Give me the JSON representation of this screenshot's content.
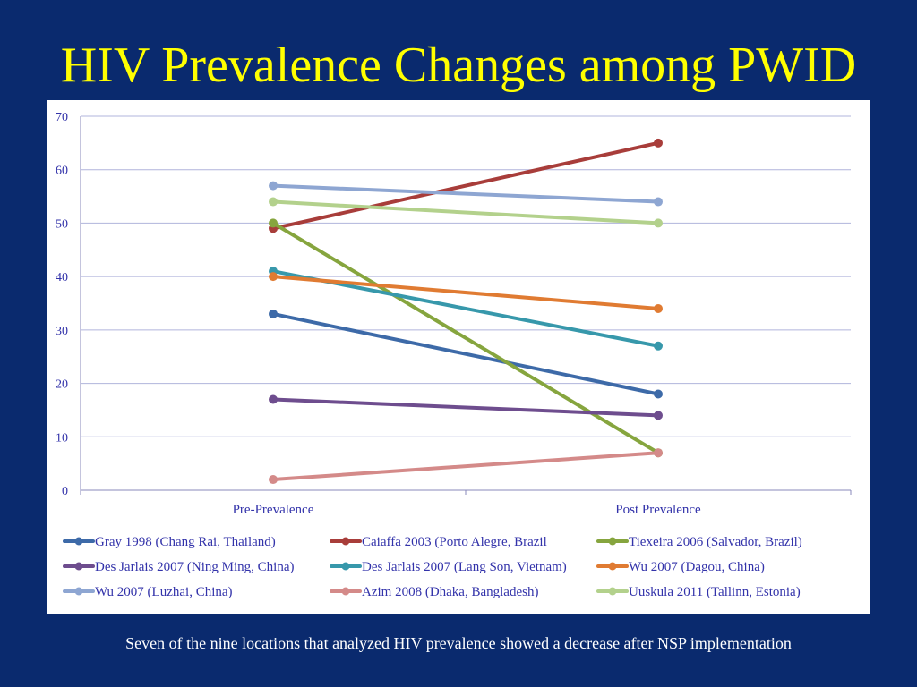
{
  "slide": {
    "title": "HIV Prevalence Changes among PWID",
    "caption": "Seven of the nine locations that analyzed HIV prevalence showed a decrease after NSP implementation"
  },
  "chart_data": {
    "type": "line",
    "categories": [
      "Pre-Prevalence",
      "Post Prevalence"
    ],
    "ylim": [
      0,
      70
    ],
    "yticks": [
      0,
      10,
      20,
      30,
      40,
      50,
      60,
      70
    ],
    "grid": true,
    "legend_position": "bottom",
    "series": [
      {
        "name": "Gray 1998 (Chang Rai, Thailand)",
        "color": "#3d6aa8",
        "values": [
          33,
          18
        ]
      },
      {
        "name": "Caiaffa 2003 (Porto Alegre, Brazil",
        "color": "#a83d3a",
        "values": [
          49,
          65
        ]
      },
      {
        "name": "Tiexeira 2006 (Salvador, Brazil)",
        "color": "#86a53e",
        "values": [
          50,
          7
        ]
      },
      {
        "name": "Des Jarlais 2007 (Ning Ming,  China)",
        "color": "#6e4d8e",
        "values": [
          17,
          14
        ]
      },
      {
        "name": "Des Jarlais 2007 (Lang Son, Vietnam)",
        "color": "#3798ab",
        "values": [
          41,
          27
        ]
      },
      {
        "name": "Wu 2007 (Dagou, China)",
        "color": "#e07b32",
        "values": [
          40,
          34
        ]
      },
      {
        "name": "Wu 2007 (Luzhai, China)",
        "color": "#8ea6d2",
        "values": [
          57,
          54
        ]
      },
      {
        "name": "Azim 2008 (Dhaka, Bangladesh)",
        "color": "#d48a89",
        "values": [
          2,
          7
        ]
      },
      {
        "name": "Uuskula 2011 (Tallinn, Estonia)",
        "color": "#b3d18c",
        "values": [
          54,
          50
        ]
      }
    ]
  }
}
